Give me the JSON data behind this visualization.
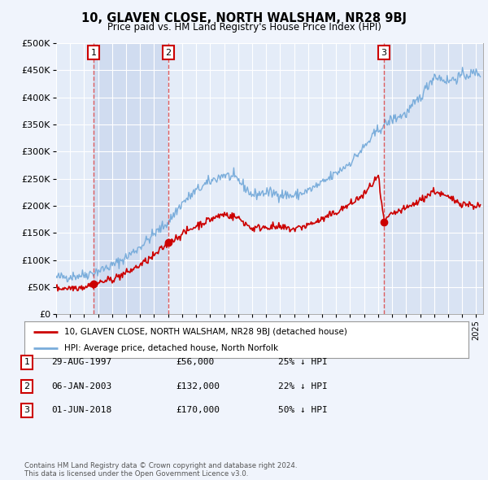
{
  "title": "10, GLAVEN CLOSE, NORTH WALSHAM, NR28 9BJ",
  "subtitle": "Price paid vs. HM Land Registry's House Price Index (HPI)",
  "xlim_start": 1995.0,
  "xlim_end": 2025.5,
  "ylim": [
    0,
    500000
  ],
  "yticks": [
    0,
    50000,
    100000,
    150000,
    200000,
    250000,
    300000,
    350000,
    400000,
    450000,
    500000
  ],
  "ytick_labels": [
    "£0",
    "£50K",
    "£100K",
    "£150K",
    "£200K",
    "£250K",
    "£300K",
    "£350K",
    "£400K",
    "£450K",
    "£500K"
  ],
  "background_color": "#f0f4fc",
  "plot_bg": "#e4ecf8",
  "shaded_bg": "#d0dcf0",
  "grid_color": "#ffffff",
  "sale_dates": [
    1997.664,
    2003.014,
    2018.414
  ],
  "sale_prices": [
    56000,
    132000,
    170000
  ],
  "sale_labels": [
    "1",
    "2",
    "3"
  ],
  "sale_info": [
    {
      "label": "1",
      "date": "29-AUG-1997",
      "price": "£56,000",
      "hpi": "25% ↓ HPI"
    },
    {
      "label": "2",
      "date": "06-JAN-2003",
      "price": "£132,000",
      "hpi": "22% ↓ HPI"
    },
    {
      "label": "3",
      "date": "01-JUN-2018",
      "price": "£170,000",
      "hpi": "50% ↓ HPI"
    }
  ],
  "legend_line1": "10, GLAVEN CLOSE, NORTH WALSHAM, NR28 9BJ (detached house)",
  "legend_line2": "HPI: Average price, detached house, North Norfolk",
  "footer": "Contains HM Land Registry data © Crown copyright and database right 2024.\nThis data is licensed under the Open Government Licence v3.0.",
  "red_color": "#cc0000",
  "blue_color": "#7aaddb",
  "vline_color": "#dd4444"
}
